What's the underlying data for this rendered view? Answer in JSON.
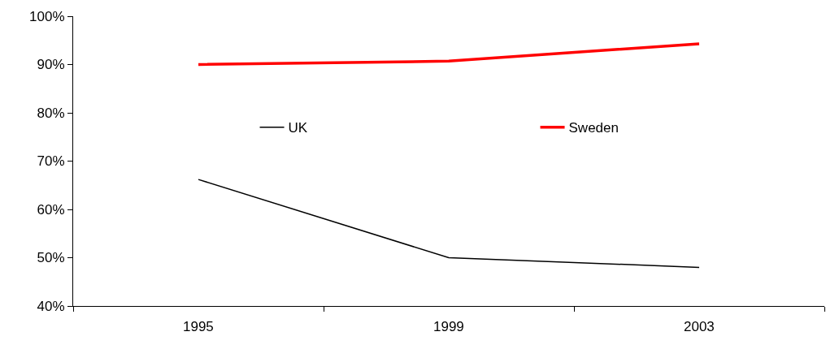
{
  "chart_data": {
    "type": "line",
    "categories": [
      "1995",
      "1999",
      "2003"
    ],
    "series": [
      {
        "name": "UK",
        "color": "#000000",
        "values": [
          66.2,
          50,
          48
        ]
      },
      {
        "name": "Sweden",
        "color": "#ff0000",
        "values": [
          90,
          90.7,
          94.3
        ]
      }
    ],
    "ylim": [
      40,
      100
    ],
    "yticks": [
      {
        "value": 40,
        "label": "40%"
      },
      {
        "value": 50,
        "label": "50%"
      },
      {
        "value": 60,
        "label": "60%"
      },
      {
        "value": 70,
        "label": "70%"
      },
      {
        "value": 80,
        "label": "80%"
      },
      {
        "value": 90,
        "label": "90%"
      },
      {
        "value": 100,
        "label": "100%"
      }
    ],
    "legend": "top",
    "marker": "none",
    "line_style": "solid"
  }
}
